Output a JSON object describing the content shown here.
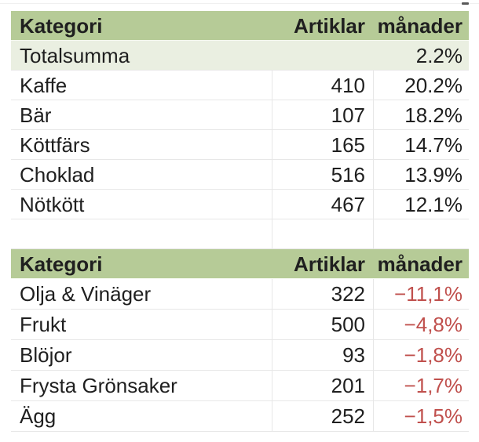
{
  "ui": {
    "colors": {
      "header_bg": "#b6cb97",
      "total_row_bg": "#eaefe1",
      "negative_text": "#c0504d",
      "text": "#1f1f1f",
      "gridline": "#e7e7e7",
      "background": "#ffffff"
    }
  },
  "table_top": {
    "headers": {
      "category": "Kategori",
      "articles": "Artiklar",
      "months": "månader"
    },
    "rows": [
      {
        "category": "Totalsumma",
        "articles": "",
        "months": "2.2%"
      },
      {
        "category": "Kaffe",
        "articles": "410",
        "months": "20.2%"
      },
      {
        "category": "Bär",
        "articles": "107",
        "months": "18.2%"
      },
      {
        "category": "Köttfärs",
        "articles": "165",
        "months": "14.7%"
      },
      {
        "category": "Choklad",
        "articles": "516",
        "months": "13.9%"
      },
      {
        "category": "Nötkött",
        "articles": "467",
        "months": "12.1%"
      }
    ]
  },
  "table_bottom": {
    "headers": {
      "category": "Kategori",
      "articles": "Artiklar",
      "months": "månader"
    },
    "rows": [
      {
        "category": "Olja & Vinäger",
        "articles": "322",
        "months": "−11,1%"
      },
      {
        "category": "Frukt",
        "articles": "500",
        "months": "−4,8%"
      },
      {
        "category": "Blöjor",
        "articles": "93",
        "months": "−1,8%"
      },
      {
        "category": "Frysta Grönsaker",
        "articles": "201",
        "months": "−1,7%"
      },
      {
        "category": "Ägg",
        "articles": "252",
        "months": "−1,5%"
      }
    ]
  }
}
